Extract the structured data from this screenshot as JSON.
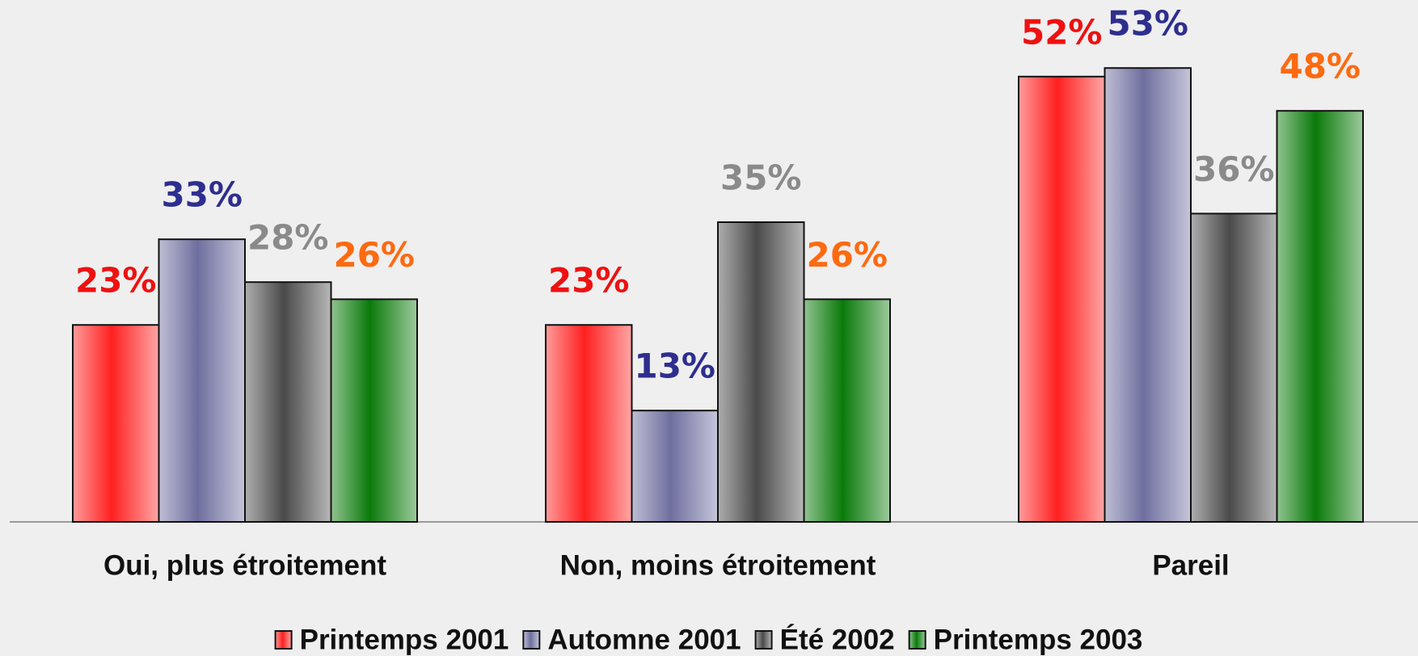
{
  "chart_data": {
    "type": "bar",
    "categories": [
      "Oui, plus étroitement",
      "Non, moins étroitement",
      "Pareil"
    ],
    "series": [
      {
        "name": "Printemps 2001",
        "color": "#ff2020",
        "label_color": "#ee1111",
        "values": [
          23,
          23,
          52
        ],
        "value_labels": [
          "23%",
          "23%",
          "52%"
        ]
      },
      {
        "name": "Automne 2001",
        "color": "#6f6f9f",
        "label_color": "#2e2e8f",
        "values": [
          33,
          13,
          53
        ],
        "value_labels": [
          "33%",
          "13%",
          "53%"
        ]
      },
      {
        "name": "Été 2002",
        "color": "#4a4a4a",
        "label_color": "#8a8a8a",
        "values": [
          28,
          35,
          36
        ],
        "value_labels": [
          "28%",
          "35%",
          "36%"
        ]
      },
      {
        "name": "Printemps 2003",
        "color": "#0a7a0a",
        "label_color": "#ff6a10",
        "values": [
          26,
          26,
          48
        ],
        "value_labels": [
          "26%",
          "26%",
          "48%"
        ]
      }
    ],
    "legend": "bottom"
  }
}
